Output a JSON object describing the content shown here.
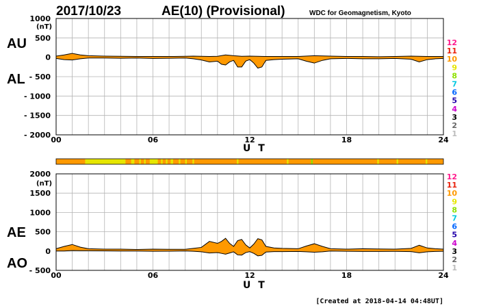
{
  "header": {
    "date": "2017/10/23",
    "title": "AE(10) (Provisional)",
    "source": "WDC for Geomagnetism, Kyoto"
  },
  "footer": {
    "created": "[Created at 2018-04-14 04:48UT]"
  },
  "colors": {
    "fill": "#ff9900",
    "outline": "#000000",
    "grid": "#b4b4b4",
    "station_bar_base": "#ff9900"
  },
  "legend": {
    "items": [
      {
        "label": "12",
        "color": "#ff1a8c"
      },
      {
        "label": "11",
        "color": "#e8200a"
      },
      {
        "label": "10",
        "color": "#ff9900"
      },
      {
        "label": "9",
        "color": "#e6e600"
      },
      {
        "label": "8",
        "color": "#8ee000"
      },
      {
        "label": "7",
        "color": "#00c8e0"
      },
      {
        "label": "6",
        "color": "#0066ff"
      },
      {
        "label": "5",
        "color": "#2200aa"
      },
      {
        "label": "4",
        "color": "#cc00cc"
      },
      {
        "label": "3",
        "color": "#000000"
      },
      {
        "label": "2",
        "color": "#666666"
      },
      {
        "label": "1",
        "color": "#bbbbbb"
      }
    ]
  },
  "station_bar": {
    "base_color": "#ff9900",
    "segments": [
      {
        "start": 1.8,
        "end": 4.3,
        "color": "#e6e600"
      },
      {
        "start": 4.65,
        "end": 4.85,
        "color": "#e6e600"
      },
      {
        "start": 5.15,
        "end": 5.25,
        "color": "#e6e600"
      },
      {
        "start": 5.45,
        "end": 5.55,
        "color": "#e6e600"
      },
      {
        "start": 5.8,
        "end": 6.3,
        "color": "#e6e600"
      },
      {
        "start": 6.5,
        "end": 6.6,
        "color": "#e6e600"
      },
      {
        "start": 6.8,
        "end": 6.9,
        "color": "#e6e600"
      },
      {
        "start": 7.1,
        "end": 7.25,
        "color": "#e6e600"
      },
      {
        "start": 7.6,
        "end": 7.7,
        "color": "#e6e600"
      },
      {
        "start": 8.0,
        "end": 8.1,
        "color": "#e6e600"
      },
      {
        "start": 8.45,
        "end": 8.55,
        "color": "#e6e600"
      },
      {
        "start": 11.2,
        "end": 11.3,
        "color": "#e6e600"
      },
      {
        "start": 14.3,
        "end": 14.4,
        "color": "#e6e600"
      },
      {
        "start": 15.8,
        "end": 15.9,
        "color": "#8ee000"
      },
      {
        "start": 19.9,
        "end": 20.0,
        "color": "#e6e600"
      },
      {
        "start": 21.1,
        "end": 21.2,
        "color": "#e6e600"
      },
      {
        "start": 22.9,
        "end": 23.0,
        "color": "#e6e600"
      }
    ]
  },
  "chart_data": [
    {
      "type": "area",
      "labels": [
        "AU",
        "AL"
      ],
      "ylabel": "(nT)",
      "xlabel": "U T",
      "xlim": [
        0,
        24
      ],
      "ylim": [
        -2000,
        1000
      ],
      "yticks": [
        1000,
        500,
        0,
        -500,
        -1000,
        -1500,
        -2000
      ],
      "ytick_labels": [
        "1000",
        "500",
        "0",
        "- 500",
        "- 1000",
        "- 1500",
        "- 2000"
      ],
      "xticks": [
        0,
        6,
        12,
        18,
        24
      ],
      "xtick_labels": [
        "00",
        "06",
        "12",
        "18",
        "24"
      ],
      "grid": true,
      "series": [
        {
          "name": "AU",
          "x": [
            0,
            0.5,
            1,
            1.5,
            2,
            3,
            4,
            5,
            6,
            7,
            8,
            8.5,
            9,
            9.5,
            10,
            10.5,
            11,
            11.5,
            12,
            12.5,
            13,
            14,
            15,
            16,
            17,
            18,
            19,
            20,
            21,
            22,
            23,
            24
          ],
          "values": [
            30,
            60,
            100,
            60,
            40,
            30,
            25,
            20,
            20,
            20,
            25,
            30,
            25,
            20,
            25,
            60,
            40,
            25,
            30,
            25,
            20,
            20,
            20,
            40,
            30,
            20,
            20,
            15,
            20,
            30,
            20,
            20
          ]
        },
        {
          "name": "AL",
          "x": [
            0,
            0.5,
            1,
            1.5,
            2,
            3,
            4,
            5,
            6,
            7,
            8,
            8.5,
            9,
            9.5,
            10,
            10.25,
            10.5,
            10.75,
            11,
            11.25,
            11.5,
            11.75,
            12,
            12.25,
            12.5,
            12.75,
            13,
            13.5,
            14,
            15,
            15.5,
            16,
            16.5,
            17,
            18,
            19,
            20,
            21,
            22,
            22.5,
            23,
            23.5,
            24
          ],
          "values": [
            -30,
            -60,
            -70,
            -40,
            -20,
            -20,
            -25,
            -20,
            -30,
            -25,
            -20,
            -40,
            -70,
            -120,
            -100,
            -180,
            -200,
            -120,
            -80,
            -250,
            -250,
            -100,
            -60,
            -150,
            -280,
            -250,
            -80,
            -60,
            -50,
            -40,
            -100,
            -150,
            -80,
            -40,
            -30,
            -40,
            -40,
            -30,
            -50,
            -120,
            -60,
            -40,
            -30
          ]
        }
      ]
    },
    {
      "type": "area",
      "labels": [
        "AE",
        "AO"
      ],
      "ylabel": "(nT)",
      "xlabel": "U T",
      "xlim": [
        0,
        24
      ],
      "ylim": [
        -500,
        2000
      ],
      "yticks": [
        2000,
        1500,
        1000,
        500,
        0,
        -500
      ],
      "ytick_labels": [
        "2000",
        "1500",
        "1000",
        "500",
        "0",
        "- 500"
      ],
      "xticks": [
        0,
        6,
        12,
        18,
        24
      ],
      "xtick_labels": [
        "00",
        "06",
        "12",
        "18",
        "24"
      ],
      "grid": true,
      "series": [
        {
          "name": "AE",
          "x": [
            0,
            0.5,
            1,
            1.5,
            2,
            3,
            4,
            5,
            6,
            7,
            8,
            8.5,
            9,
            9.5,
            10,
            10.25,
            10.5,
            10.75,
            11,
            11.25,
            11.5,
            11.75,
            12,
            12.25,
            12.5,
            12.75,
            13,
            13.5,
            14,
            15,
            15.5,
            16,
            16.5,
            17,
            18,
            19,
            20,
            21,
            22,
            22.5,
            23,
            23.5,
            24
          ],
          "values": [
            60,
            120,
            170,
            100,
            60,
            50,
            50,
            40,
            50,
            45,
            45,
            70,
            95,
            250,
            200,
            250,
            330,
            200,
            120,
            270,
            300,
            160,
            80,
            180,
            320,
            290,
            120,
            80,
            70,
            60,
            130,
            190,
            120,
            60,
            50,
            60,
            55,
            50,
            70,
            150,
            80,
            60,
            50
          ]
        },
        {
          "name": "AO",
          "x": [
            0,
            0.5,
            1,
            1.5,
            2,
            3,
            4,
            5,
            6,
            7,
            8,
            8.5,
            9,
            9.5,
            10,
            10.25,
            10.5,
            10.75,
            11,
            11.25,
            11.5,
            11.75,
            12,
            12.25,
            12.5,
            12.75,
            13,
            13.5,
            14,
            15,
            15.5,
            16,
            16.5,
            17,
            18,
            19,
            20,
            21,
            22,
            22.5,
            23,
            23.5,
            24
          ],
          "values": [
            0,
            0,
            15,
            10,
            10,
            5,
            0,
            0,
            -5,
            -3,
            3,
            -5,
            -20,
            -50,
            -40,
            -60,
            -80,
            -50,
            -20,
            -100,
            -105,
            -40,
            -15,
            -60,
            -125,
            -110,
            -25,
            -15,
            -15,
            -10,
            -20,
            -30,
            -20,
            0,
            -5,
            -10,
            -10,
            -8,
            -15,
            -45,
            -20,
            -10,
            -5
          ]
        }
      ]
    }
  ]
}
